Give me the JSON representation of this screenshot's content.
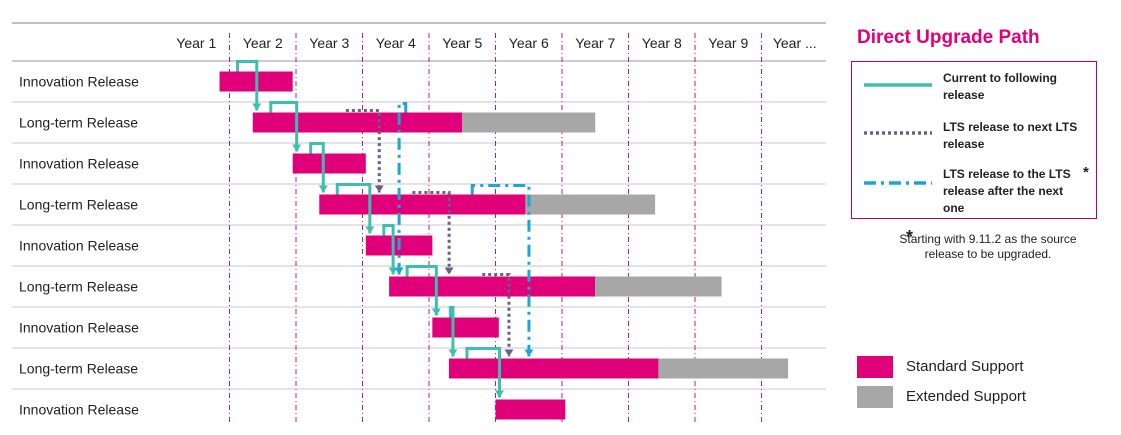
{
  "years": [
    "Year 1",
    "Year 2",
    "Year 3",
    "Year 4",
    "Year 5",
    "Year 6",
    "Year 7",
    "Year 8",
    "Year 9",
    "Year ..."
  ],
  "rows": [
    {
      "label": "Innovation Release",
      "std_start": 0.85,
      "std_end": 1.95
    },
    {
      "label": "Long-term Release",
      "std_start": 1.35,
      "std_end": 4.5,
      "ext_end": 6.5
    },
    {
      "label": "Innovation Release",
      "std_start": 1.95,
      "std_end": 3.05
    },
    {
      "label": "Long-term Release",
      "std_start": 2.35,
      "std_end": 5.45,
      "ext_end": 7.4
    },
    {
      "label": "Innovation Release",
      "std_start": 3.05,
      "std_end": 4.05
    },
    {
      "label": "Long-term Release",
      "std_start": 3.4,
      "std_end": 6.5,
      "ext_end": 8.4
    },
    {
      "label": "Innovation Release",
      "std_start": 4.05,
      "std_end": 5.05
    },
    {
      "label": "Long-term Release",
      "std_start": 4.3,
      "std_end": 7.45,
      "ext_end": 9.4
    },
    {
      "label": "Innovation Release",
      "std_start": 5.0,
      "std_end": 6.05
    }
  ],
  "colors": {
    "standard": "#e0007a",
    "extended": "#a7a7a7",
    "current_path": "#3dbfb0",
    "lts_path": "#6b5f82",
    "lts_skip_path": "#1aa7d6",
    "accent": "#e0007a"
  },
  "legend": {
    "title": "Direct Upgrade Path",
    "current": "Current to following release",
    "lts_next": "LTS release to next LTS release",
    "lts_skip": "LTS release to the LTS release after the next one",
    "asterisk": "*",
    "note": "Starting with 9.11.2 as the source release to be upgraded."
  },
  "support": {
    "standard": "Standard Support",
    "extended": "Extended Support"
  }
}
